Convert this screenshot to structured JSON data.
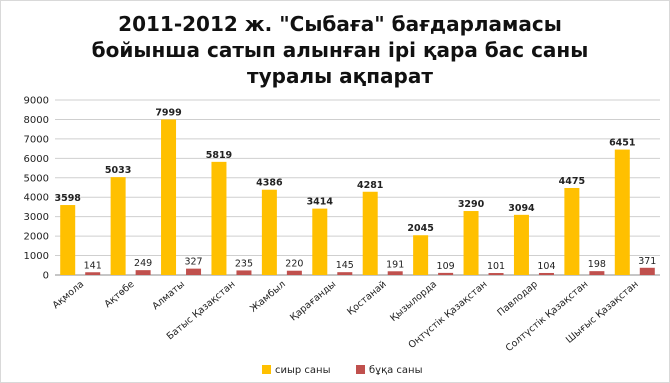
{
  "chart_data": {
    "type": "bar",
    "title_lines": [
      "2011-2012 ж. \"Сыбаға\" бағдарламасы",
      "бойынша сатып алынған ірі қара бас саны",
      "туралы ақпарат"
    ],
    "categories": [
      "Ақмола",
      "Ақтөбе",
      "Алматы",
      "Батыс Қазақстан",
      "Жамбыл",
      "Қарағанды",
      "Қостанай",
      "Қызылорда",
      "Оңтүстік Қазақстан",
      "Павлодар",
      "Солтүстік Қазақстан",
      "Шығыс Қазақстан"
    ],
    "series": [
      {
        "name": "сиыр саны",
        "color": "#FFC000",
        "values": [
          3598,
          5033,
          7999,
          5819,
          4386,
          3414,
          4281,
          2045,
          3290,
          3094,
          4475,
          6451
        ]
      },
      {
        "name": "бұқа саны",
        "color": "#C0504D",
        "values": [
          141,
          249,
          327,
          235,
          220,
          145,
          191,
          109,
          101,
          104,
          198,
          371
        ]
      }
    ],
    "ylim": [
      0,
      9000
    ],
    "yticks": [
      "0",
      "1000",
      "2000",
      "3000",
      "4000",
      "5000",
      "6000",
      "7000",
      "8000",
      "9000"
    ],
    "grid": true,
    "legend_position": "bottom"
  }
}
